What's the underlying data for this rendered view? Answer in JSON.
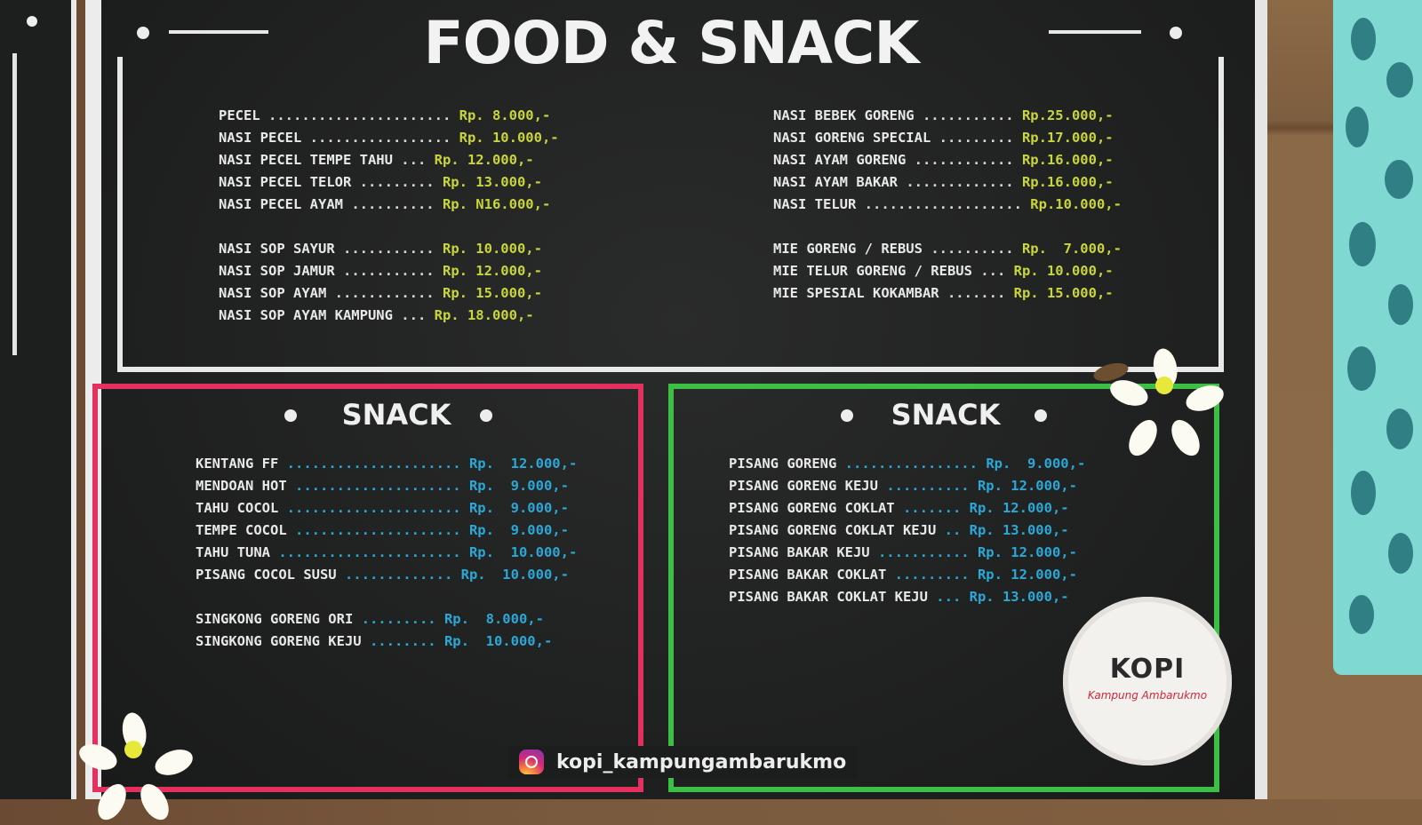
{
  "title": "FOOD & SNACK",
  "top_left_items": [
    {
      "name": "PECEL",
      "dots": " ...................... ",
      "price": "Rp. 8.000,-"
    },
    {
      "name": "NASI PECEL",
      "dots": " ................. ",
      "price": "Rp. 10.000,-"
    },
    {
      "name": "NASI PECEL TEMPE TAHU",
      "dots": " ... ",
      "price": "Rp. 12.000,-"
    },
    {
      "name": "NASI PECEL TELOR",
      "dots": " ......... ",
      "price": "Rp. 13.000,-"
    },
    {
      "name": "NASI PECEL AYAM",
      "dots": " .......... ",
      "price": "Rp. N16.000,-"
    }
  ],
  "top_left_items_2": [
    {
      "name": "NASI SOP SAYUR",
      "dots": " ........... ",
      "price": "Rp. 10.000,-"
    },
    {
      "name": "NASI SOP JAMUR",
      "dots": " ........... ",
      "price": "Rp. 12.000,-"
    },
    {
      "name": "NASI SOP AYAM",
      "dots": " ............ ",
      "price": "Rp. 15.000,-"
    },
    {
      "name": "NASI SOP AYAM KAMPUNG",
      "dots": " ... ",
      "price": "Rp. 18.000,-"
    }
  ],
  "top_right_items": [
    {
      "name": "NASI BEBEK GORENG",
      "dots": " ........... ",
      "price": "Rp.25.000,-"
    },
    {
      "name": "NASI GORENG SPECIAL",
      "dots": " ......... ",
      "price": "Rp.17.000,-"
    },
    {
      "name": "NASI AYAM GORENG",
      "dots": " ............ ",
      "price": "Rp.16.000,-"
    },
    {
      "name": "NASI AYAM BAKAR",
      "dots": " ............. ",
      "price": "Rp.16.000,-"
    },
    {
      "name": "NASI TELUR",
      "dots": " ................... ",
      "price": "Rp.10.000,-"
    }
  ],
  "top_right_items_2": [
    {
      "name": "MIE GORENG / REBUS",
      "dots": " .......... ",
      "price": "Rp.  7.000,-"
    },
    {
      "name": "MIE TELUR GORENG / REBUS",
      "dots": " ... ",
      "price": "Rp. 10.000,-"
    },
    {
      "name": "MIE SPESIAL KOKAMBAR",
      "dots": " ....... ",
      "price": "Rp. 15.000,-"
    }
  ],
  "snack_left": {
    "title": "SNACK",
    "items": [
      {
        "name": "KENTANG FF",
        "dots": " ..................... ",
        "price": "Rp.  12.000,-"
      },
      {
        "name": "MENDOAN HOT",
        "dots": " .................... ",
        "price": "Rp.  9.000,-"
      },
      {
        "name": "TAHU COCOL",
        "dots": " ..................... ",
        "price": "Rp.  9.000,-"
      },
      {
        "name": "TEMPE COCOL",
        "dots": " .................... ",
        "price": "Rp.  9.000,-"
      },
      {
        "name": "TAHU TUNA",
        "dots": " ...................... ",
        "price": "Rp.  10.000,-"
      },
      {
        "name": "PISANG COCOL SUSU",
        "dots": " ............. ",
        "price": "Rp.  10.000,-"
      }
    ],
    "items_2": [
      {
        "name": "SINGKONG GORENG ORI",
        "dots": " ......... ",
        "price": "Rp.  8.000,-"
      },
      {
        "name": "SINGKONG GORENG KEJU",
        "dots": " ........ ",
        "price": "Rp.  10.000,-"
      }
    ]
  },
  "snack_right": {
    "title": "SNACK",
    "items": [
      {
        "name": "PISANG GORENG",
        "dots": " ................ ",
        "price": "Rp.  9.000,-"
      },
      {
        "name": "PISANG GORENG KEJU",
        "dots": " .......... ",
        "price": "Rp. 12.000,-"
      },
      {
        "name": "PISANG GORENG COKLAT",
        "dots": " ....... ",
        "price": "Rp. 12.000,-"
      },
      {
        "name": "PISANG GORENG COKLAT KEJU",
        "dots": " .. ",
        "price": "Rp. 13.000,-"
      },
      {
        "name": "PISANG BAKAR KEJU",
        "dots": " ........... ",
        "price": "Rp. 12.000,-"
      },
      {
        "name": "PISANG BAKAR COKLAT",
        "dots": " ......... ",
        "price": "Rp. 12.000,-"
      },
      {
        "name": "PISANG BAKAR COKLAT KEJU",
        "dots": " ... ",
        "price": "Rp. 13.000,-"
      }
    ]
  },
  "instagram": "kopi_kampungambarukmo",
  "logo": {
    "main": "KOPI",
    "sub": "Kampung Ambarukmo"
  },
  "colors": {
    "left_snack_border": "#e3305f",
    "right_snack_border": "#3cbf44",
    "price_yellow": "#c9d63a",
    "price_blue": "#2aa8d8"
  }
}
